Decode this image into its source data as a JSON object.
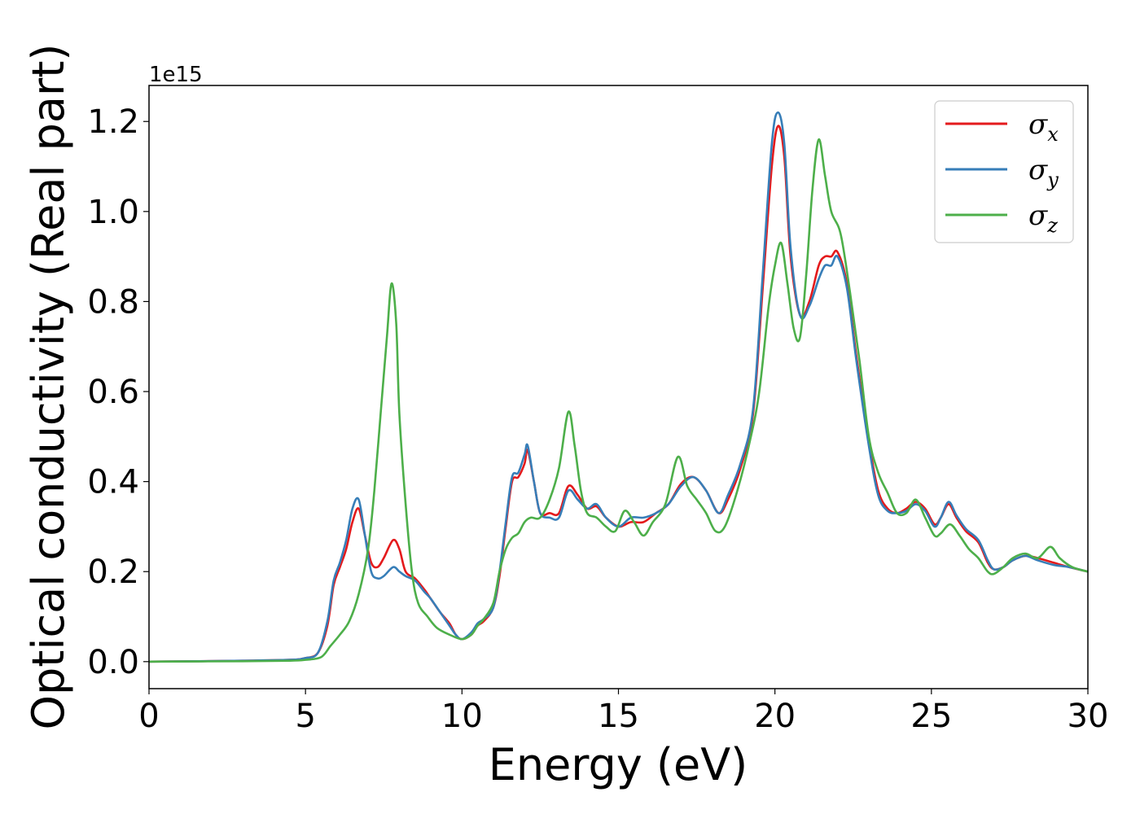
{
  "chart_data": {
    "type": "line",
    "title": "",
    "xlabel": "Energy (eV)",
    "ylabel": "Optical conductivity (Real part)",
    "y_offset_text": "1e15",
    "xlim": [
      0,
      30
    ],
    "ylim": [
      -0.06,
      1.28
    ],
    "xticks": [
      0,
      5,
      10,
      15,
      20,
      25,
      30
    ],
    "xtick_labels": [
      "0",
      "5",
      "10",
      "15",
      "20",
      "25",
      "30"
    ],
    "yticks": [
      0.0,
      0.2,
      0.4,
      0.6,
      0.8,
      1.0,
      1.2
    ],
    "ytick_labels": [
      "0.0",
      "0.2",
      "0.4",
      "0.6",
      "0.8",
      "1.0",
      "1.2"
    ],
    "grid": false,
    "legend_position": "top-right",
    "series": [
      {
        "name": "σx",
        "legend": {
          "base": "σ",
          "sub": "x"
        },
        "color": "#e41a1c",
        "points": [
          [
            0,
            0
          ],
          [
            3,
            0.002
          ],
          [
            4.5,
            0.004
          ],
          [
            5,
            0.008
          ],
          [
            5.4,
            0.02
          ],
          [
            5.7,
            0.08
          ],
          [
            5.9,
            0.17
          ],
          [
            6.1,
            0.21
          ],
          [
            6.3,
            0.25
          ],
          [
            6.5,
            0.31
          ],
          [
            6.7,
            0.34
          ],
          [
            6.9,
            0.28
          ],
          [
            7.1,
            0.22
          ],
          [
            7.3,
            0.21
          ],
          [
            7.5,
            0.23
          ],
          [
            7.8,
            0.27
          ],
          [
            8.0,
            0.25
          ],
          [
            8.2,
            0.2
          ],
          [
            8.5,
            0.185
          ],
          [
            8.8,
            0.16
          ],
          [
            9.0,
            0.14
          ],
          [
            9.3,
            0.11
          ],
          [
            9.6,
            0.085
          ],
          [
            9.8,
            0.06
          ],
          [
            10.0,
            0.05
          ],
          [
            10.3,
            0.06
          ],
          [
            10.5,
            0.08
          ],
          [
            10.7,
            0.09
          ],
          [
            11.0,
            0.12
          ],
          [
            11.2,
            0.19
          ],
          [
            11.4,
            0.3
          ],
          [
            11.6,
            0.4
          ],
          [
            11.8,
            0.41
          ],
          [
            12.0,
            0.44
          ],
          [
            12.1,
            0.47
          ],
          [
            12.3,
            0.4
          ],
          [
            12.5,
            0.33
          ],
          [
            12.8,
            0.33
          ],
          [
            13.1,
            0.33
          ],
          [
            13.4,
            0.39
          ],
          [
            13.7,
            0.37
          ],
          [
            14.0,
            0.34
          ],
          [
            14.3,
            0.345
          ],
          [
            14.6,
            0.32
          ],
          [
            15.0,
            0.3
          ],
          [
            15.4,
            0.31
          ],
          [
            15.8,
            0.31
          ],
          [
            16.2,
            0.33
          ],
          [
            16.6,
            0.35
          ],
          [
            17.0,
            0.395
          ],
          [
            17.4,
            0.41
          ],
          [
            17.8,
            0.38
          ],
          [
            18.2,
            0.33
          ],
          [
            18.5,
            0.36
          ],
          [
            18.9,
            0.43
          ],
          [
            19.3,
            0.55
          ],
          [
            19.6,
            0.82
          ],
          [
            19.9,
            1.1
          ],
          [
            20.1,
            1.19
          ],
          [
            20.3,
            1.12
          ],
          [
            20.5,
            0.9
          ],
          [
            20.8,
            0.77
          ],
          [
            21.1,
            0.8
          ],
          [
            21.4,
            0.88
          ],
          [
            21.6,
            0.9
          ],
          [
            21.8,
            0.9
          ],
          [
            22.0,
            0.91
          ],
          [
            22.3,
            0.84
          ],
          [
            22.6,
            0.68
          ],
          [
            23.0,
            0.49
          ],
          [
            23.3,
            0.38
          ],
          [
            23.6,
            0.34
          ],
          [
            23.9,
            0.33
          ],
          [
            24.2,
            0.34
          ],
          [
            24.5,
            0.355
          ],
          [
            24.8,
            0.34
          ],
          [
            25.1,
            0.305
          ],
          [
            25.3,
            0.32
          ],
          [
            25.55,
            0.35
          ],
          [
            25.8,
            0.32
          ],
          [
            26.1,
            0.29
          ],
          [
            26.5,
            0.265
          ],
          [
            26.8,
            0.22
          ],
          [
            27.0,
            0.205
          ],
          [
            27.3,
            0.21
          ],
          [
            27.6,
            0.225
          ],
          [
            28.0,
            0.235
          ],
          [
            28.4,
            0.23
          ],
          [
            28.9,
            0.22
          ],
          [
            29.4,
            0.21
          ],
          [
            30,
            0.2
          ]
        ]
      },
      {
        "name": "σy",
        "legend": {
          "base": "σ",
          "sub": "y"
        },
        "color": "#377eb8",
        "points": [
          [
            0,
            0
          ],
          [
            3,
            0.002
          ],
          [
            4.5,
            0.004
          ],
          [
            5,
            0.008
          ],
          [
            5.4,
            0.02
          ],
          [
            5.7,
            0.09
          ],
          [
            5.9,
            0.18
          ],
          [
            6.1,
            0.22
          ],
          [
            6.3,
            0.27
          ],
          [
            6.5,
            0.34
          ],
          [
            6.7,
            0.36
          ],
          [
            6.9,
            0.28
          ],
          [
            7.1,
            0.2
          ],
          [
            7.3,
            0.185
          ],
          [
            7.5,
            0.19
          ],
          [
            7.8,
            0.21
          ],
          [
            8.0,
            0.2
          ],
          [
            8.2,
            0.19
          ],
          [
            8.5,
            0.18
          ],
          [
            8.8,
            0.155
          ],
          [
            9.0,
            0.14
          ],
          [
            9.3,
            0.11
          ],
          [
            9.6,
            0.08
          ],
          [
            9.8,
            0.06
          ],
          [
            10.0,
            0.05
          ],
          [
            10.3,
            0.065
          ],
          [
            10.5,
            0.085
          ],
          [
            10.7,
            0.095
          ],
          [
            11.0,
            0.12
          ],
          [
            11.2,
            0.2
          ],
          [
            11.4,
            0.31
          ],
          [
            11.6,
            0.41
          ],
          [
            11.8,
            0.42
          ],
          [
            12.0,
            0.46
          ],
          [
            12.1,
            0.48
          ],
          [
            12.3,
            0.4
          ],
          [
            12.5,
            0.33
          ],
          [
            12.8,
            0.32
          ],
          [
            13.1,
            0.32
          ],
          [
            13.4,
            0.38
          ],
          [
            13.7,
            0.36
          ],
          [
            14.0,
            0.34
          ],
          [
            14.3,
            0.35
          ],
          [
            14.6,
            0.32
          ],
          [
            15.0,
            0.3
          ],
          [
            15.4,
            0.32
          ],
          [
            15.8,
            0.32
          ],
          [
            16.2,
            0.33
          ],
          [
            16.6,
            0.35
          ],
          [
            17.0,
            0.39
          ],
          [
            17.4,
            0.41
          ],
          [
            17.8,
            0.38
          ],
          [
            18.2,
            0.33
          ],
          [
            18.5,
            0.37
          ],
          [
            18.9,
            0.44
          ],
          [
            19.3,
            0.56
          ],
          [
            19.6,
            0.85
          ],
          [
            19.9,
            1.15
          ],
          [
            20.1,
            1.22
          ],
          [
            20.3,
            1.15
          ],
          [
            20.5,
            0.92
          ],
          [
            20.8,
            0.77
          ],
          [
            21.1,
            0.79
          ],
          [
            21.4,
            0.85
          ],
          [
            21.6,
            0.88
          ],
          [
            21.8,
            0.88
          ],
          [
            22.0,
            0.9
          ],
          [
            22.3,
            0.83
          ],
          [
            22.6,
            0.67
          ],
          [
            23.0,
            0.48
          ],
          [
            23.3,
            0.37
          ],
          [
            23.6,
            0.335
          ],
          [
            23.9,
            0.33
          ],
          [
            24.2,
            0.335
          ],
          [
            24.5,
            0.35
          ],
          [
            24.8,
            0.335
          ],
          [
            25.1,
            0.3
          ],
          [
            25.3,
            0.32
          ],
          [
            25.55,
            0.355
          ],
          [
            25.8,
            0.325
          ],
          [
            26.1,
            0.295
          ],
          [
            26.5,
            0.27
          ],
          [
            26.8,
            0.225
          ],
          [
            27.0,
            0.205
          ],
          [
            27.3,
            0.21
          ],
          [
            27.6,
            0.225
          ],
          [
            28.0,
            0.235
          ],
          [
            28.4,
            0.225
          ],
          [
            28.9,
            0.215
          ],
          [
            29.4,
            0.21
          ],
          [
            30,
            0.2
          ]
        ]
      },
      {
        "name": "σz",
        "legend": {
          "base": "σ",
          "sub": "z"
        },
        "color": "#4daf4a",
        "points": [
          [
            0,
            0
          ],
          [
            3,
            0.001
          ],
          [
            4.5,
            0.002
          ],
          [
            5,
            0.004
          ],
          [
            5.5,
            0.01
          ],
          [
            5.8,
            0.035
          ],
          [
            6.1,
            0.06
          ],
          [
            6.4,
            0.09
          ],
          [
            6.7,
            0.15
          ],
          [
            7.0,
            0.25
          ],
          [
            7.2,
            0.38
          ],
          [
            7.4,
            0.55
          ],
          [
            7.6,
            0.72
          ],
          [
            7.75,
            0.84
          ],
          [
            7.9,
            0.75
          ],
          [
            8.0,
            0.55
          ],
          [
            8.2,
            0.35
          ],
          [
            8.4,
            0.2
          ],
          [
            8.6,
            0.13
          ],
          [
            8.9,
            0.1
          ],
          [
            9.2,
            0.075
          ],
          [
            9.6,
            0.06
          ],
          [
            10.0,
            0.05
          ],
          [
            10.3,
            0.06
          ],
          [
            10.5,
            0.08
          ],
          [
            10.7,
            0.095
          ],
          [
            11.0,
            0.13
          ],
          [
            11.2,
            0.2
          ],
          [
            11.4,
            0.25
          ],
          [
            11.6,
            0.275
          ],
          [
            11.8,
            0.285
          ],
          [
            12.0,
            0.31
          ],
          [
            12.2,
            0.32
          ],
          [
            12.5,
            0.32
          ],
          [
            12.8,
            0.36
          ],
          [
            13.1,
            0.43
          ],
          [
            13.4,
            0.555
          ],
          [
            13.6,
            0.48
          ],
          [
            13.8,
            0.38
          ],
          [
            14.0,
            0.33
          ],
          [
            14.3,
            0.32
          ],
          [
            14.6,
            0.3
          ],
          [
            14.9,
            0.29
          ],
          [
            15.2,
            0.335
          ],
          [
            15.5,
            0.31
          ],
          [
            15.8,
            0.28
          ],
          [
            16.1,
            0.31
          ],
          [
            16.5,
            0.35
          ],
          [
            16.9,
            0.455
          ],
          [
            17.2,
            0.39
          ],
          [
            17.5,
            0.36
          ],
          [
            17.8,
            0.33
          ],
          [
            18.1,
            0.29
          ],
          [
            18.4,
            0.3
          ],
          [
            18.8,
            0.38
          ],
          [
            19.2,
            0.49
          ],
          [
            19.5,
            0.6
          ],
          [
            19.8,
            0.79
          ],
          [
            20.0,
            0.88
          ],
          [
            20.2,
            0.93
          ],
          [
            20.4,
            0.84
          ],
          [
            20.6,
            0.74
          ],
          [
            20.8,
            0.72
          ],
          [
            21.0,
            0.86
          ],
          [
            21.2,
            1.05
          ],
          [
            21.4,
            1.16
          ],
          [
            21.6,
            1.08
          ],
          [
            21.8,
            1.0
          ],
          [
            22.1,
            0.95
          ],
          [
            22.4,
            0.82
          ],
          [
            22.7,
            0.67
          ],
          [
            23.0,
            0.5
          ],
          [
            23.3,
            0.42
          ],
          [
            23.6,
            0.375
          ],
          [
            23.9,
            0.33
          ],
          [
            24.2,
            0.33
          ],
          [
            24.5,
            0.36
          ],
          [
            24.8,
            0.32
          ],
          [
            25.1,
            0.28
          ],
          [
            25.3,
            0.285
          ],
          [
            25.6,
            0.305
          ],
          [
            25.9,
            0.28
          ],
          [
            26.2,
            0.25
          ],
          [
            26.5,
            0.23
          ],
          [
            26.8,
            0.2
          ],
          [
            27.0,
            0.195
          ],
          [
            27.3,
            0.21
          ],
          [
            27.6,
            0.23
          ],
          [
            28.0,
            0.24
          ],
          [
            28.4,
            0.23
          ],
          [
            28.8,
            0.255
          ],
          [
            29.1,
            0.23
          ],
          [
            29.5,
            0.21
          ],
          [
            30,
            0.2
          ]
        ]
      }
    ]
  }
}
